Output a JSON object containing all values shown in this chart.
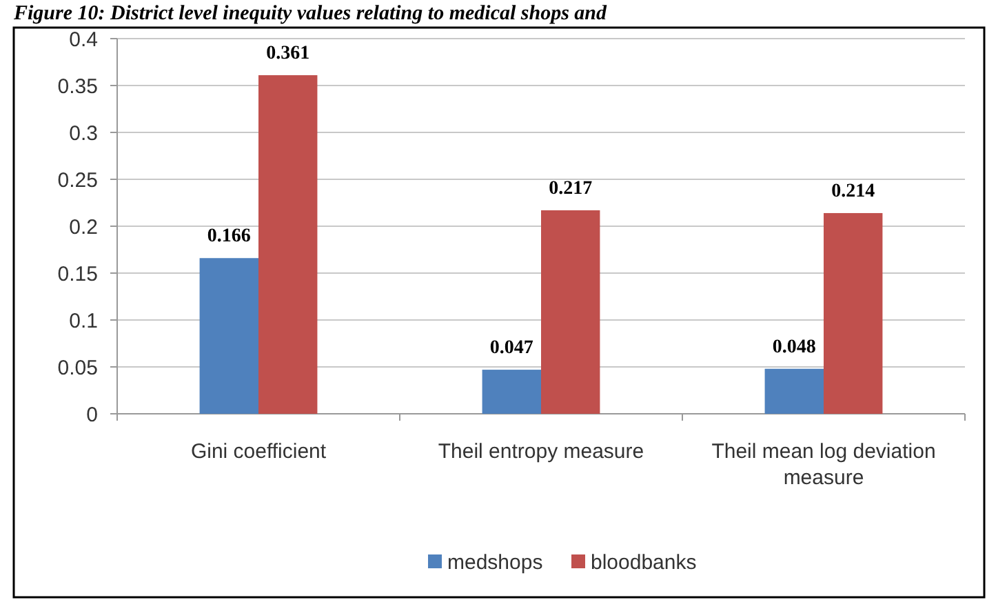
{
  "chart_data": {
    "type": "bar",
    "title": "Figure 10: District level inequity values relating to medical shops and",
    "categories": [
      "Gini coefficient",
      "Theil entropy measure",
      "Theil mean log deviation measure"
    ],
    "series": [
      {
        "name": "medshops",
        "color": "#4f81bd",
        "values": [
          0.166,
          0.047,
          0.048
        ]
      },
      {
        "name": "bloodbanks",
        "color": "#c0504d",
        "values": [
          0.361,
          0.217,
          0.214
        ]
      }
    ],
    "ylim": [
      0,
      0.4
    ],
    "yticks": [
      0,
      0.05,
      0.1,
      0.15,
      0.2,
      0.25,
      0.3,
      0.35,
      0.4
    ],
    "grid": "y",
    "legend": "bottom",
    "data_labels": true
  }
}
